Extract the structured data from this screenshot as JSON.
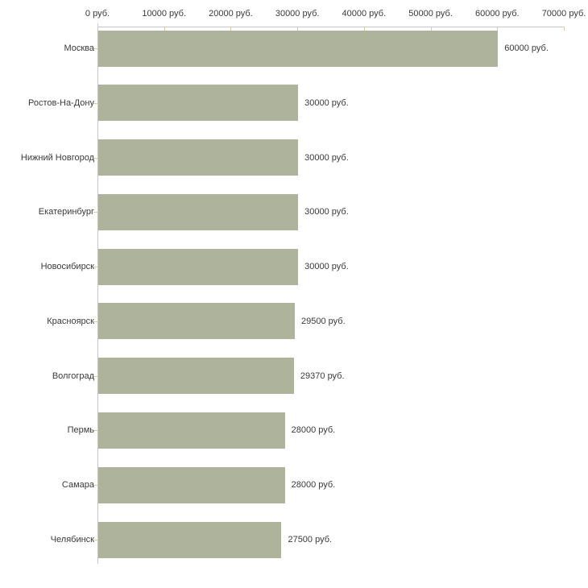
{
  "chart_data": {
    "type": "bar",
    "orientation": "horizontal",
    "title": "",
    "xlabel": "",
    "ylabel": "",
    "xlim": [
      0,
      70000
    ],
    "grid": false,
    "legend": false,
    "x_ticks": [
      0,
      10000,
      20000,
      30000,
      40000,
      50000,
      60000,
      70000
    ],
    "x_tick_labels": [
      "0 руб.",
      "10000 руб.",
      "20000 руб.",
      "30000 руб.",
      "40000 руб.",
      "50000 руб.",
      "60000 руб.",
      "70000 руб."
    ],
    "categories": [
      "Москва",
      "Ростов-На-Дону",
      "Нижний Новгород",
      "Екатеринбург",
      "Новосибирск",
      "Красноярск",
      "Волгоград",
      "Пермь",
      "Самара",
      "Челябинск"
    ],
    "values": [
      60000,
      30000,
      30000,
      30000,
      30000,
      29500,
      29370,
      28000,
      28000,
      27500
    ],
    "value_labels": [
      "60000 руб.",
      "30000 руб.",
      "30000 руб.",
      "30000 руб.",
      "30000 руб.",
      "29500 руб.",
      "29370 руб.",
      "28000 руб.",
      "28000 руб.",
      "27500 руб."
    ],
    "colors": {
      "bar": "#aeb49c",
      "axis_line": "#c6c6c6",
      "tick_mark": "#d6d0a4",
      "text": "#3a3a3a",
      "background": "#ffffff"
    }
  }
}
